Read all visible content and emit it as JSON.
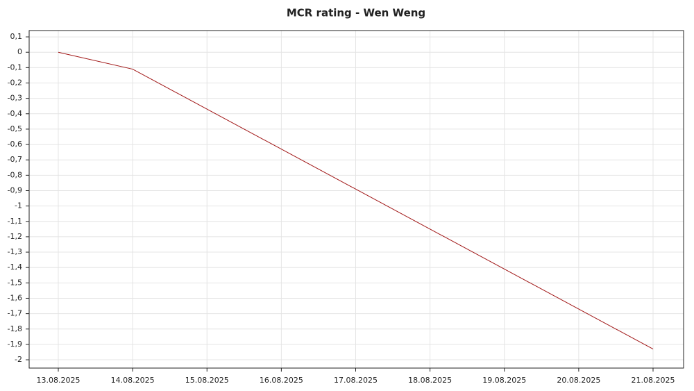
{
  "chart_data": {
    "type": "line",
    "title": "MCR rating - Wen Weng",
    "x": [
      "13.08.2025",
      "14.08.2025",
      "21.08.2025"
    ],
    "series": [
      {
        "name": "MCR rating",
        "color": "#a01515",
        "values": [
          0,
          -0.11,
          -1.93
        ]
      }
    ],
    "xticks": [
      "13.08.2025",
      "14.08.2025",
      "15.08.2025",
      "16.08.2025",
      "17.08.2025",
      "18.08.2025",
      "19.08.2025",
      "20.08.2025",
      "21.08.2025"
    ],
    "ylim": [
      -2.054,
      0.141
    ],
    "yticks": [
      {
        "value": 0.1,
        "label": "0,1"
      },
      0,
      {
        "value": -0.1,
        "label": "-0,1"
      },
      {
        "value": -0.2,
        "label": "-0,2"
      },
      {
        "value": -0.3,
        "label": "-0,3"
      },
      {
        "value": -0.4,
        "label": "-0,4"
      },
      {
        "value": -0.5,
        "label": "-0,5"
      },
      {
        "value": -0.6,
        "label": "-0,6"
      },
      {
        "value": -0.7,
        "label": "-0,7"
      },
      {
        "value": -0.8,
        "label": "-0,8"
      },
      {
        "value": -0.9,
        "label": "-0,9"
      },
      -1,
      {
        "value": -1.1,
        "label": "-1,1"
      },
      {
        "value": -1.2,
        "label": "-1,2"
      },
      {
        "value": -1.3,
        "label": "-1,3"
      },
      {
        "value": -1.4,
        "label": "-1,4"
      },
      {
        "value": -1.5,
        "label": "-1,5"
      },
      {
        "value": -1.6,
        "label": "-1,6"
      },
      {
        "value": -1.7,
        "label": "-1,7"
      },
      {
        "value": -1.8,
        "label": "-1,8"
      },
      {
        "value": -1.9,
        "label": "-1,9"
      },
      -2
    ],
    "grid": true
  }
}
